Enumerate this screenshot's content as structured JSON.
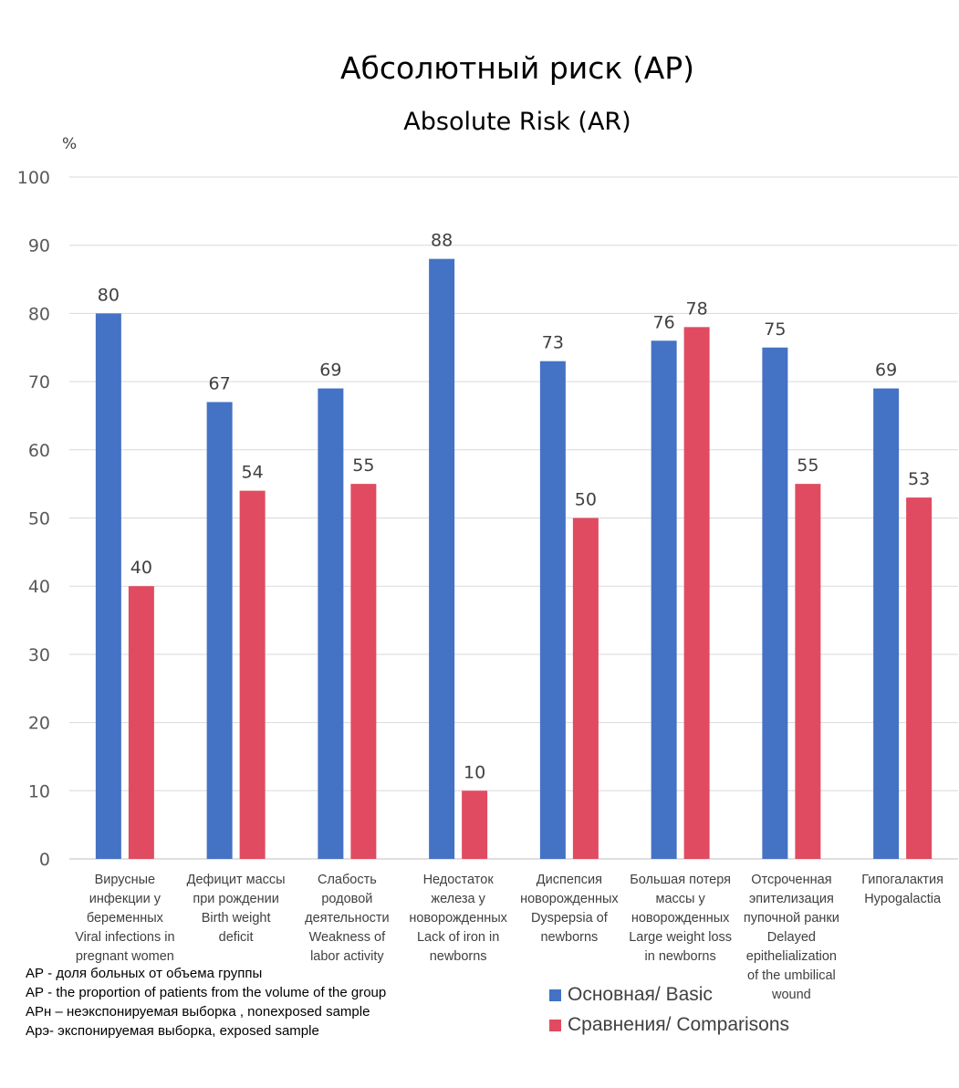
{
  "chart_data": {
    "type": "bar",
    "title": "Абсолютный риск (АР)",
    "subtitle": "Absolute Risk (AR)",
    "ylabel": "%",
    "ylim": [
      0,
      100
    ],
    "yticks": [
      0,
      10,
      20,
      30,
      40,
      50,
      60,
      70,
      80,
      90,
      100
    ],
    "grid": true,
    "legend_position": "bottom-right",
    "categories": [
      "Вирусные\nинфекции у\nбеременных\nViral infections in\npregnant women",
      "Дефицит массы\nпри рождении\nBirth weight\ndeficit",
      "Слабость\nродовой\nдеятельности\nWeakness of\nlabor activity",
      "Недостаток\nжелеза у\nноворожденных\nLack of iron in\nnewborns",
      "Диспепсия\nноворожденных\nDyspepsia of\nnewborns",
      "Большая потеря\nмассы у\nноворожденных\nLarge weight loss\nin newborns",
      "Отсроченная\nэпителизация\nпупочной ранки\nDelayed\nepithelialization\nof the umbilical\nwound",
      "Гипогалактия\nHypogalactia"
    ],
    "series": [
      {
        "name": "Основная/ Basic",
        "color": "#4472C4",
        "values": [
          80,
          67,
          69,
          88,
          73,
          76,
          75,
          69
        ]
      },
      {
        "name": "Сравнения/ Comparisons",
        "color": "#E04B61",
        "values": [
          40,
          54,
          55,
          10,
          50,
          78,
          55,
          53
        ]
      }
    ]
  },
  "notes": [
    "АР - доля больных от объема группы",
    "АР - the proportion of patients from the volume of the group",
    "АРн – неэкспонируемая выборка , nonexposed sample",
    "Арэ- экспонируемая выборка, exposed sample"
  ]
}
